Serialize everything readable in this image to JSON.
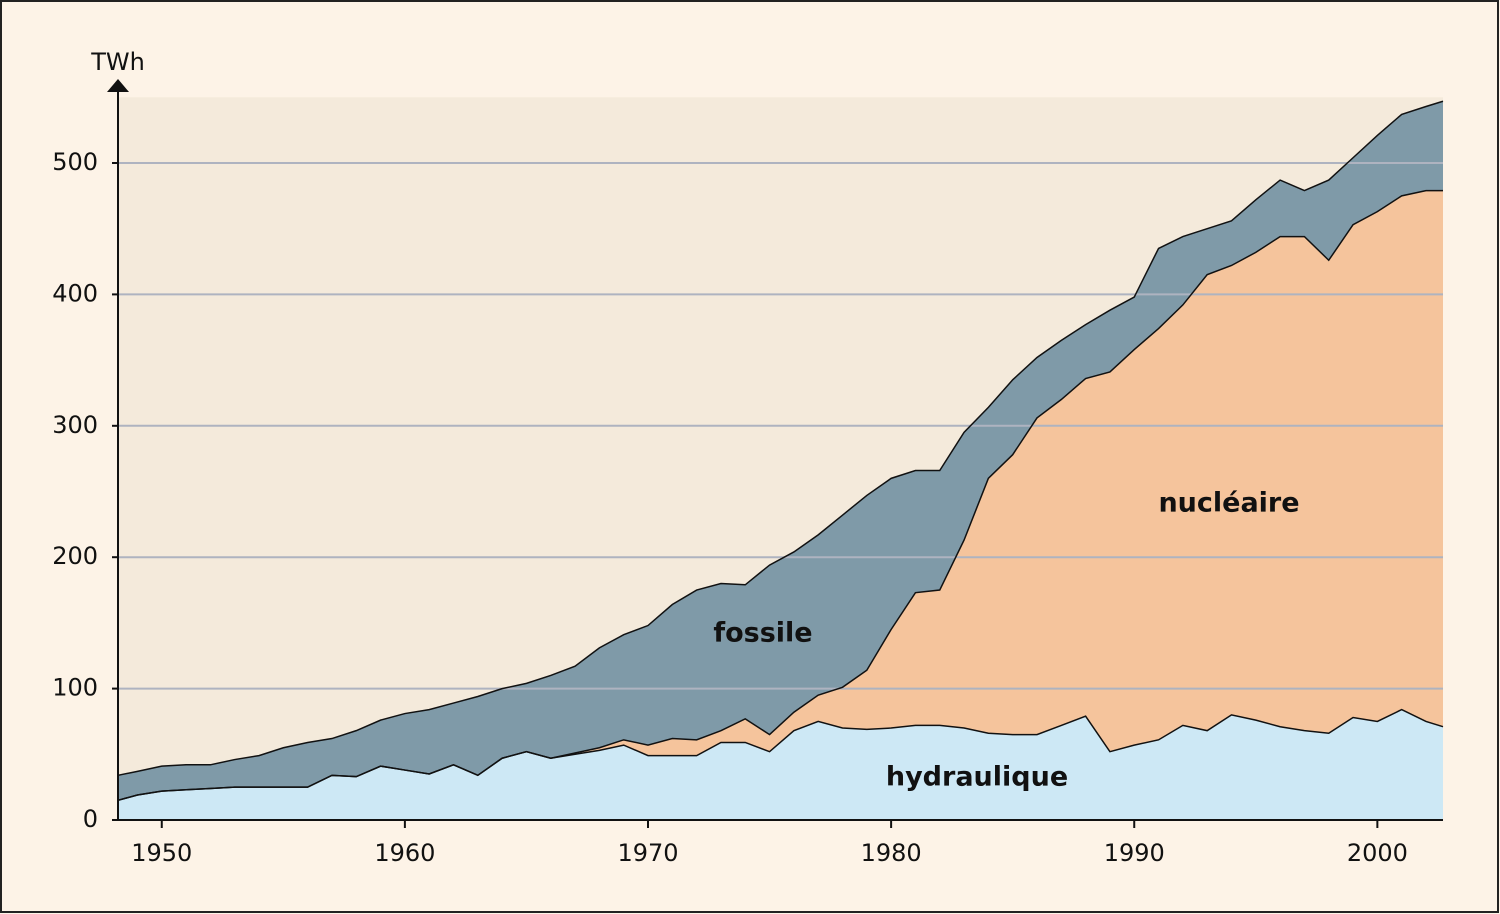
{
  "chart_data": {
    "type": "stacked_area",
    "y_label": "TWh",
    "x": [
      1948.2,
      1949,
      1950,
      1951,
      1952,
      1953,
      1954,
      1955,
      1956,
      1957,
      1958,
      1959,
      1960,
      1961,
      1962,
      1963,
      1964,
      1965,
      1966,
      1967,
      1968,
      1969,
      1970,
      1971,
      1972,
      1973,
      1974,
      1975,
      1976,
      1977,
      1978,
      1979,
      1980,
      1981,
      1982,
      1983,
      1984,
      1985,
      1986,
      1987,
      1988,
      1989,
      1990,
      1991,
      1992,
      1993,
      1994,
      1995,
      1996,
      1997,
      1998,
      1999,
      2000,
      2001,
      2002,
      2002.7
    ],
    "series": [
      {
        "name": "hydraulique",
        "color": "#cde8f5",
        "values": [
          15,
          19,
          22,
          23,
          24,
          25,
          25,
          25,
          25,
          34,
          33,
          41,
          38,
          35,
          42,
          34,
          47,
          52,
          47,
          50,
          53,
          57,
          49,
          49,
          49,
          59,
          59,
          52,
          68,
          75,
          70,
          69,
          70,
          72,
          72,
          70,
          66,
          65,
          65,
          72,
          79,
          52,
          57,
          61,
          72,
          68,
          80,
          76,
          71,
          68,
          66,
          78,
          75,
          84,
          75,
          71
        ]
      },
      {
        "name": "nucléaire",
        "color": "#f5c49c",
        "values": [
          0,
          0,
          0,
          0,
          0,
          0,
          0,
          0,
          0,
          0,
          0,
          0,
          0,
          0,
          0,
          0,
          0,
          0,
          0,
          1,
          2,
          4,
          8,
          13,
          12,
          9,
          18,
          13,
          14,
          20,
          31,
          45,
          75,
          101,
          103,
          143,
          194,
          213,
          241,
          248,
          257,
          289,
          301,
          313,
          320,
          347,
          342,
          356,
          373,
          376,
          360,
          375,
          388,
          391,
          404,
          408
        ]
      },
      {
        "name": "fossile",
        "color": "#7f9aa8",
        "values": [
          19,
          18,
          19,
          19,
          18,
          21,
          24,
          30,
          34,
          28,
          35,
          35,
          43,
          49,
          47,
          60,
          53,
          52,
          63,
          66,
          76,
          80,
          91,
          102,
          114,
          112,
          102,
          129,
          122,
          122,
          131,
          133,
          115,
          93,
          91,
          82,
          54,
          57,
          46,
          45,
          41,
          47,
          40,
          61,
          52,
          35,
          34,
          40,
          43,
          35,
          61,
          51,
          58,
          62,
          64,
          68
        ]
      }
    ],
    "xlim": [
      1948.2,
      2002.7
    ],
    "xticks": [
      1950,
      1960,
      1970,
      1980,
      1990,
      2000
    ],
    "ylim": [
      0,
      550
    ],
    "yticks": [
      0,
      100,
      200,
      300,
      400,
      500
    ],
    "grid": true,
    "background": "#f4eadb"
  }
}
